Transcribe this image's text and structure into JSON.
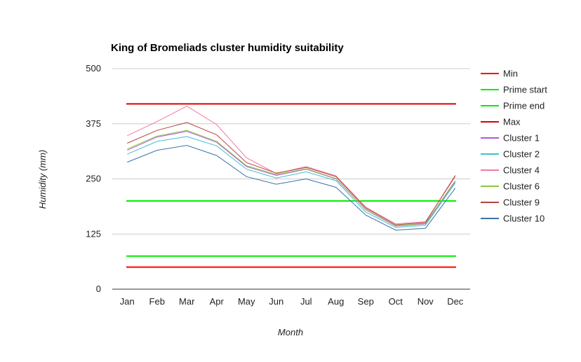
{
  "chart_data": {
    "type": "line",
    "title": "King of Bromeliads cluster humidity suitability",
    "xlabel": "Month",
    "ylabel": "Humidity (mm)",
    "categories": [
      "Jan",
      "Feb",
      "Mar",
      "Apr",
      "May",
      "Jun",
      "Jul",
      "Aug",
      "Sep",
      "Oct",
      "Nov",
      "Dec"
    ],
    "ylim": [
      0,
      500
    ],
    "yticks": [
      "0",
      "125",
      "250",
      "375",
      "500"
    ],
    "grid": true,
    "legend_position": "right",
    "series": [
      {
        "name": "Min",
        "color": "#ff0000",
        "values": [
          50,
          50,
          50,
          50,
          50,
          50,
          50,
          50,
          50,
          50,
          50,
          50
        ]
      },
      {
        "name": "Prime start",
        "color": "#00ee00",
        "values": [
          75,
          75,
          75,
          75,
          75,
          75,
          75,
          75,
          75,
          75,
          75,
          75
        ]
      },
      {
        "name": "Prime end",
        "color": "#00ee00",
        "values": [
          200,
          200,
          200,
          200,
          200,
          200,
          200,
          200,
          200,
          200,
          200,
          200
        ]
      },
      {
        "name": "Max",
        "color": "#dd0000",
        "values": [
          420,
          420,
          420,
          420,
          420,
          420,
          420,
          420,
          420,
          420,
          420,
          420
        ]
      },
      {
        "name": "Cluster 1",
        "color": "#b356d4",
        "values": [
          315,
          345,
          358,
          333,
          278,
          258,
          272,
          250,
          180,
          143,
          148,
          244
        ]
      },
      {
        "name": "Cluster 2",
        "color": "#3fbfcf",
        "values": [
          306,
          335,
          346,
          325,
          272,
          252,
          266,
          246,
          175,
          140,
          145,
          241
        ]
      },
      {
        "name": "Cluster 4",
        "color": "#f07aa0",
        "values": [
          348,
          380,
          415,
          373,
          298,
          262,
          278,
          257,
          186,
          148,
          153,
          255
        ]
      },
      {
        "name": "Cluster 6",
        "color": "#8ec63f",
        "values": [
          318,
          347,
          360,
          335,
          280,
          260,
          273,
          251,
          181,
          144,
          149,
          246
        ]
      },
      {
        "name": "Cluster 9",
        "color": "#b5433a",
        "values": [
          331,
          360,
          378,
          350,
          287,
          263,
          276,
          255,
          184,
          146,
          151,
          258
        ]
      },
      {
        "name": "Cluster 10",
        "color": "#3a73a9",
        "values": [
          288,
          315,
          326,
          303,
          255,
          238,
          250,
          231,
          168,
          134,
          138,
          229
        ]
      }
    ]
  }
}
